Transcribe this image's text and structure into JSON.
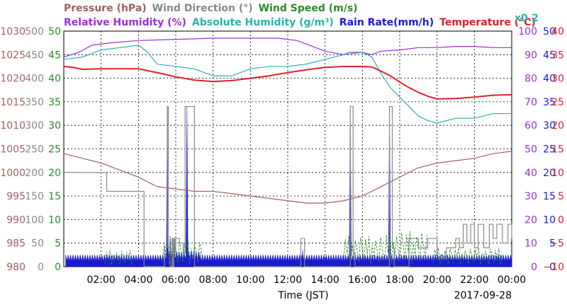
{
  "chart_data": {
    "type": "line",
    "date": "2017-09-28",
    "xlabel": "Time (JST)",
    "x_ticks": [
      "02:00",
      "04:00",
      "06:00",
      "08:00",
      "10:00",
      "12:00",
      "14:00",
      "16:00",
      "18:00",
      "20:00",
      "22:00",
      "00:00"
    ],
    "x_range_hours": [
      0,
      24
    ],
    "grid": true,
    "header_top": [
      {
        "text": "Pressure (hPa)",
        "color": "#a0605f"
      },
      {
        "text": "Wind Direction (°)",
        "color": "#888888"
      },
      {
        "text": "Wind Speed (m/s)",
        "color": "#2a8a2a"
      }
    ],
    "header_bottom": [
      {
        "text": "Relative Humidity (%)",
        "color": "#9b30d0"
      },
      {
        "text": "Absolute Humidity (g/m³)",
        "color": "#2ab0b0"
      },
      {
        "text": "Rain Rate(mm/h)",
        "color": "#1a1ad0"
      },
      {
        "text": "Temperature (°C)",
        "color": "#e0202a"
      }
    ],
    "abs_humidity_scale": "x0.2",
    "axes": [
      {
        "name": "Pressure",
        "side": "left",
        "color": "#a0605f",
        "ticks": [
          "980",
          "985",
          "990",
          "995",
          "1000",
          "1005",
          "1010",
          "1015",
          "1020",
          "1025",
          "1030"
        ],
        "range": [
          980,
          1030
        ]
      },
      {
        "name": "Wind Direction",
        "side": "left",
        "color": "#888888",
        "ticks": [
          "0",
          "50",
          "100",
          "150",
          "200",
          "250",
          "300",
          "350",
          "400",
          "450",
          "500"
        ],
        "range": [
          0,
          500
        ]
      },
      {
        "name": "Wind Speed",
        "side": "left",
        "color": "#2a8a2a",
        "ticks": [
          "0",
          "5",
          "10",
          "15",
          "20",
          "25",
          "30",
          "35",
          "40",
          "45",
          "50"
        ],
        "range": [
          0,
          50
        ]
      },
      {
        "name": "Relative Humidity",
        "side": "right",
        "color": "#9b30d0",
        "ticks": [
          "0",
          "10",
          "20",
          "30",
          "40",
          "50",
          "60",
          "70",
          "80",
          "90",
          "100"
        ],
        "range": [
          0,
          100
        ]
      },
      {
        "name": "Rain Rate",
        "side": "right",
        "color": "#1a1ad0",
        "ticks": [
          "0",
          "5",
          "10",
          "15",
          "20",
          "25",
          "30",
          "35",
          "40",
          "45",
          "50"
        ],
        "range": [
          0,
          50
        ]
      },
      {
        "name": "Temperature",
        "side": "right",
        "color": "#e0202a",
        "ticks": [
          "−10",
          "−5",
          "0",
          "5",
          "10",
          "15",
          "20",
          "25",
          "30",
          "35",
          "40"
        ],
        "range": [
          -10,
          40
        ]
      }
    ],
    "series": [
      {
        "name": "Relative Humidity",
        "axis": 3,
        "color": "#9b30d0",
        "x": [
          0,
          0.8,
          1.5,
          2.5,
          4,
          6,
          8,
          10,
          11.5,
          12.5,
          13.5,
          14,
          15,
          15.3,
          15.5,
          16,
          16.5,
          17,
          18,
          19,
          20,
          21,
          22,
          23,
          24
        ],
        "y": [
          89,
          91,
          94,
          95,
          96,
          96.5,
          97,
          97,
          97,
          96,
          93,
          91.5,
          90,
          91,
          91,
          91,
          90,
          91.5,
          92,
          93,
          93,
          93.5,
          93.5,
          93,
          93
        ]
      },
      {
        "name": "Absolute Humidity",
        "axis": 3,
        "color": "#2ab0b0",
        "x": [
          0,
          1,
          2,
          3,
          4,
          4.5,
          5,
          6,
          7,
          8,
          9,
          10,
          11,
          12,
          13,
          14,
          15,
          16,
          16.5,
          17,
          17.5,
          18,
          18.5,
          19,
          19.5,
          20,
          21,
          22,
          23,
          24
        ],
        "y": [
          88,
          89,
          92,
          93,
          94,
          91,
          86,
          85,
          84,
          81,
          81,
          84,
          85,
          85,
          86,
          88,
          90,
          91,
          89,
          82,
          76,
          72,
          68,
          64,
          62,
          61,
          63,
          63,
          65,
          65
        ]
      },
      {
        "name": "Temperature",
        "axis": 5,
        "color": "#e0202a",
        "x": [
          0,
          0.5,
          1,
          2,
          4,
          5,
          6,
          7,
          8,
          9,
          10,
          11,
          12,
          13,
          14,
          15,
          16,
          16.5,
          17,
          17.5,
          18,
          18.5,
          19,
          19.5,
          20,
          21,
          22,
          23,
          24
        ],
        "y": [
          32.5,
          32.3,
          31.9,
          32,
          32,
          31.2,
          30.3,
          29.6,
          29.3,
          29.5,
          30,
          30.5,
          31.2,
          31.8,
          32.3,
          32.5,
          32.5,
          32.4,
          31.5,
          30.5,
          29.2,
          28,
          27,
          26.2,
          25.6,
          25.7,
          26,
          26.4,
          26.5
        ]
      },
      {
        "name": "Pressure",
        "axis": 0,
        "color": "#a0605f",
        "x": [
          0,
          1,
          2,
          3,
          4,
          5,
          6,
          7,
          8,
          9,
          10,
          11,
          12,
          13,
          14,
          15,
          16,
          17,
          18,
          19,
          20,
          21,
          22,
          23,
          24
        ],
        "y": [
          1004,
          1003,
          1002,
          1000.5,
          999,
          997,
          996.5,
          996,
          996,
          995.5,
          995,
          994.5,
          994,
          993.5,
          993.5,
          994,
          995,
          997,
          999,
          1001,
          1002,
          1002.5,
          1003,
          1004,
          1004.5
        ]
      },
      {
        "name": "Wind Direction",
        "axis": 1,
        "color": "#888888",
        "style": "step",
        "x": [
          0,
          2.3,
          2.3,
          4.3,
          4.3,
          4.4,
          4.4,
          5.3,
          5.4,
          5.55,
          5.6,
          5.7,
          5.8,
          5.85,
          5.9,
          5.95,
          6.0,
          6.2,
          6.4,
          6.5,
          6.55,
          6.8,
          6.85,
          7.0,
          7.05,
          12.6,
          12.7,
          12.8,
          12.9,
          15.2,
          15.35,
          15.5,
          15.6,
          17.3,
          17.45,
          17.6,
          17.7,
          18.5,
          19.0,
          19.5,
          20.0,
          20.5,
          21.0,
          21.2,
          21.4,
          21.6,
          21.8,
          22.0,
          22.2,
          22.5,
          22.8,
          23.0,
          23.2,
          23.5,
          23.8,
          24
        ],
        "y": [
          200,
          200,
          160,
          160,
          0,
          0,
          0,
          0,
          40,
          340,
          40,
          0,
          60,
          0,
          60,
          30,
          60,
          50,
          30,
          340,
          340,
          340,
          340,
          0,
          0,
          0,
          60,
          60,
          0,
          0,
          340,
          30,
          0,
          0,
          340,
          40,
          0,
          60,
          40,
          60,
          20,
          40,
          60,
          40,
          90,
          50,
          90,
          40,
          90,
          40,
          90,
          60,
          90,
          50,
          90,
          60
        ]
      }
    ],
    "wind_speed_gusts": [
      {
        "from": 2.2,
        "to": 3.8,
        "peak": 3.5
      },
      {
        "from": 5.3,
        "to": 7.5,
        "peak": 5.5
      },
      {
        "from": 15.0,
        "to": 17.2,
        "peak": 6.5
      },
      {
        "from": 17.2,
        "to": 19.5,
        "peak": 7.5
      },
      {
        "from": 19.8,
        "to": 23.5,
        "peak": 4
      }
    ],
    "rain_rate": {
      "baseline": 0,
      "range": [
        0,
        50
      ],
      "segments": [
        {
          "from": 0.1,
          "to": 5.4,
          "top": 2.5
        },
        {
          "from": 5.4,
          "to": 7.3,
          "top": 3.2
        },
        {
          "from": 7.3,
          "to": 24,
          "top": 2.5
        }
      ],
      "spikes": [
        {
          "x": 5.55,
          "y": 34
        },
        {
          "x": 5.7,
          "y": 6.5
        },
        {
          "x": 6.6,
          "y": 34
        },
        {
          "x": 12.8,
          "y": 3.5
        },
        {
          "x": 15.35,
          "y": 34
        },
        {
          "x": 17.45,
          "y": 34
        }
      ]
    }
  }
}
